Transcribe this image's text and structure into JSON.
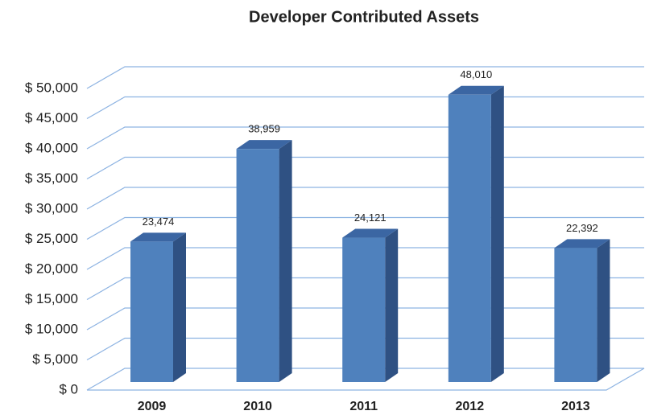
{
  "chart_data": {
    "type": "bar3d",
    "title": "Developer Contributed Assets",
    "categories": [
      "2009",
      "2010",
      "2011",
      "2012",
      "2013"
    ],
    "values": [
      23474,
      38959,
      24121,
      48010,
      22392
    ],
    "value_labels": [
      "23,474",
      "38,959",
      "24,121",
      "48,010",
      "22,392"
    ],
    "color": "#4f81bd",
    "ylim": [
      0,
      50000
    ],
    "yticks": [
      {
        "value": 0,
        "label": "$ 0"
      },
      {
        "value": 5000,
        "label": "$ 5,000"
      },
      {
        "value": 10000,
        "label": "$ 10,000"
      },
      {
        "value": 15000,
        "label": "$ 15,000"
      },
      {
        "value": 20000,
        "label": "$ 20,000"
      },
      {
        "value": 25000,
        "label": "$ 25,000"
      },
      {
        "value": 30000,
        "label": "$ 30,000"
      },
      {
        "value": 35000,
        "label": "$ 35,000"
      },
      {
        "value": 40000,
        "label": "$ 40,000"
      },
      {
        "value": 45000,
        "label": "$ 45,000"
      },
      {
        "value": 50000,
        "label": "$ 50,000"
      }
    ],
    "grid": true
  }
}
